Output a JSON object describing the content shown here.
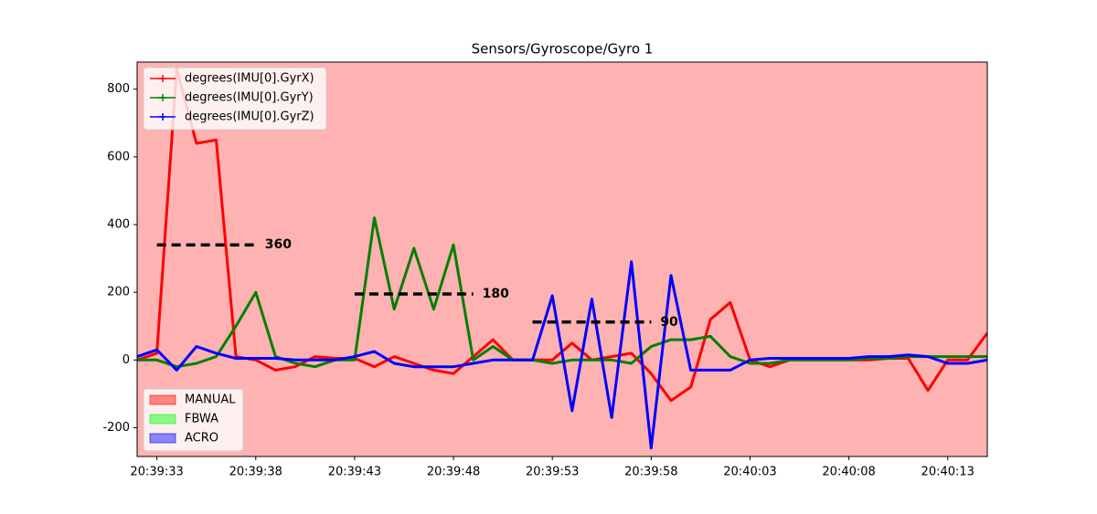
{
  "chart_data": {
    "type": "line",
    "title": "Sensors/Gyroscope/Gyro 1",
    "x": [
      "20:39:32",
      "20:39:33",
      "20:39:34",
      "20:39:35",
      "20:39:36",
      "20:39:37",
      "20:39:38",
      "20:39:39",
      "20:39:40",
      "20:39:41",
      "20:39:42",
      "20:39:43",
      "20:39:44",
      "20:39:45",
      "20:39:46",
      "20:39:47",
      "20:39:48",
      "20:39:49",
      "20:39:50",
      "20:39:51",
      "20:39:52",
      "20:39:53",
      "20:39:54",
      "20:39:55",
      "20:39:56",
      "20:39:57",
      "20:39:58",
      "20:39:59",
      "20:40:00",
      "20:40:01",
      "20:40:02",
      "20:40:03",
      "20:40:04",
      "20:40:05",
      "20:40:06",
      "20:40:07",
      "20:40:08",
      "20:40:09",
      "20:40:10",
      "20:40:11",
      "20:40:12",
      "20:40:13",
      "20:40:14",
      "20:40:15"
    ],
    "series": [
      {
        "name": "degrees(IMU[0].GyrX)",
        "color": "#ff0000",
        "values": [
          0,
          20,
          860,
          640,
          650,
          10,
          0,
          -30,
          -20,
          10,
          5,
          5,
          -20,
          10,
          -10,
          -30,
          -40,
          10,
          60,
          0,
          0,
          0,
          50,
          0,
          10,
          20,
          -40,
          -120,
          -80,
          120,
          170,
          0,
          -20,
          0,
          0,
          0,
          0,
          0,
          5,
          5,
          -90,
          0,
          0,
          80
        ]
      },
      {
        "name": "degrees(IMU[0].GyrY)",
        "color": "#008000",
        "values": [
          0,
          0,
          -20,
          -10,
          10,
          100,
          200,
          10,
          -10,
          -20,
          0,
          0,
          420,
          150,
          330,
          150,
          340,
          0,
          40,
          0,
          0,
          -10,
          0,
          0,
          0,
          -10,
          40,
          60,
          60,
          70,
          10,
          -10,
          -10,
          0,
          0,
          0,
          0,
          5,
          5,
          10,
          10,
          10,
          10,
          10
        ]
      },
      {
        "name": "degrees(IMU[0].GyrZ)",
        "color": "#0000ff",
        "values": [
          10,
          30,
          -30,
          40,
          20,
          5,
          5,
          5,
          0,
          0,
          0,
          10,
          25,
          -10,
          -20,
          -20,
          -20,
          -10,
          0,
          0,
          0,
          190,
          -150,
          180,
          -170,
          290,
          -260,
          250,
          -30,
          -30,
          -30,
          0,
          5,
          5,
          5,
          5,
          5,
          10,
          10,
          15,
          10,
          -10,
          -10,
          0
        ]
      }
    ],
    "xlim": [
      "20:39:32",
      "20:40:15"
    ],
    "xticks": [
      "20:39:33",
      "20:39:38",
      "20:39:43",
      "20:39:48",
      "20:39:53",
      "20:39:58",
      "20:40:03",
      "20:40:08",
      "20:40:13"
    ],
    "ylim": [
      -285,
      880
    ],
    "yticks": [
      -200,
      0,
      200,
      400,
      600,
      800
    ],
    "legend": "upper left",
    "annotations": [
      {
        "text": "360",
        "y": 340,
        "x": [
          "20:39:33",
          "20:39:38"
        ]
      },
      {
        "text": "180",
        "y": 195,
        "x": [
          "20:39:43",
          "20:39:49"
        ]
      },
      {
        "text": "90",
        "y": 112,
        "x": [
          "20:39:52",
          "20:39:58"
        ]
      }
    ],
    "modes": [
      {
        "name": "MANUAL",
        "color": "#ff0000"
      },
      {
        "name": "FBWA",
        "color": "#00ff00"
      },
      {
        "name": "ACRO",
        "color": "#0000ff"
      }
    ],
    "mode_legend": "lower left",
    "mode_spans": [
      {
        "mode": 0,
        "start": "20:39:32",
        "end": "20:40:15"
      }
    ]
  }
}
